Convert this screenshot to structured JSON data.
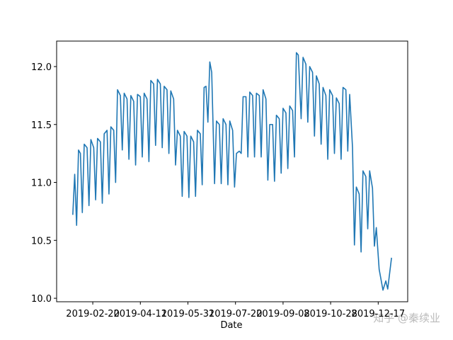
{
  "chart_data": {
    "type": "line",
    "x_label": "Date",
    "watermark": "知乎 @秦续业",
    "x": [
      "2019-01-30",
      "2019-02-01",
      "2019-02-03",
      "2019-02-05",
      "2019-02-07",
      "2019-02-09",
      "2019-02-11",
      "2019-02-14",
      "2019-02-16",
      "2019-02-18",
      "2019-02-21",
      "2019-02-23",
      "2019-02-25",
      "2019-02-28",
      "2019-03-02",
      "2019-03-04",
      "2019-03-07",
      "2019-03-09",
      "2019-03-11",
      "2019-03-14",
      "2019-03-16",
      "2019-03-18",
      "2019-03-21",
      "2019-03-23",
      "2019-03-25",
      "2019-03-28",
      "2019-03-30",
      "2019-04-01",
      "2019-04-04",
      "2019-04-06",
      "2019-04-08",
      "2019-04-11",
      "2019-04-13",
      "2019-04-15",
      "2019-04-18",
      "2019-04-20",
      "2019-04-22",
      "2019-04-25",
      "2019-04-27",
      "2019-04-29",
      "2019-05-02",
      "2019-05-04",
      "2019-05-06",
      "2019-05-09",
      "2019-05-11",
      "2019-05-13",
      "2019-05-16",
      "2019-05-18",
      "2019-05-20",
      "2019-05-23",
      "2019-05-25",
      "2019-05-27",
      "2019-05-30",
      "2019-06-01",
      "2019-06-03",
      "2019-06-06",
      "2019-06-08",
      "2019-06-10",
      "2019-06-13",
      "2019-06-15",
      "2019-06-17",
      "2019-06-19",
      "2019-06-21",
      "2019-06-23",
      "2019-06-25",
      "2019-06-28",
      "2019-06-30",
      "2019-07-03",
      "2019-07-05",
      "2019-07-07",
      "2019-07-10",
      "2019-07-12",
      "2019-07-14",
      "2019-07-17",
      "2019-07-19",
      "2019-07-21",
      "2019-07-24",
      "2019-07-26",
      "2019-07-28",
      "2019-07-31",
      "2019-08-02",
      "2019-08-04",
      "2019-08-07",
      "2019-08-09",
      "2019-08-11",
      "2019-08-14",
      "2019-08-16",
      "2019-08-18",
      "2019-08-21",
      "2019-08-23",
      "2019-08-25",
      "2019-08-28",
      "2019-08-30",
      "2019-09-01",
      "2019-09-04",
      "2019-09-06",
      "2019-09-08",
      "2019-09-11",
      "2019-09-13",
      "2019-09-15",
      "2019-09-18",
      "2019-09-20",
      "2019-09-22",
      "2019-09-24",
      "2019-09-27",
      "2019-09-29",
      "2019-10-02",
      "2019-10-04",
      "2019-10-06",
      "2019-10-09",
      "2019-10-11",
      "2019-10-13",
      "2019-10-16",
      "2019-10-18",
      "2019-10-20",
      "2019-10-23",
      "2019-10-25",
      "2019-10-27",
      "2019-10-30",
      "2019-11-01",
      "2019-11-03",
      "2019-11-06",
      "2019-11-08",
      "2019-11-10",
      "2019-11-13",
      "2019-11-15",
      "2019-11-17",
      "2019-11-20",
      "2019-11-22",
      "2019-11-24",
      "2019-11-27",
      "2019-11-29",
      "2019-12-01",
      "2019-12-04",
      "2019-12-06",
      "2019-12-08",
      "2019-12-11",
      "2019-12-13",
      "2019-12-15",
      "2019-12-18",
      "2019-12-22",
      "2019-12-25",
      "2019-12-27",
      "2019-12-31"
    ],
    "series": [
      {
        "color": "#1f77b4",
        "values": [
          10.72,
          11.07,
          10.63,
          11.28,
          11.25,
          10.74,
          11.33,
          11.3,
          10.8,
          11.37,
          11.3,
          10.85,
          11.38,
          11.35,
          10.82,
          11.42,
          11.45,
          10.9,
          11.48,
          11.45,
          11.0,
          11.8,
          11.75,
          11.28,
          11.77,
          11.72,
          11.2,
          11.75,
          11.7,
          11.15,
          11.76,
          11.74,
          11.22,
          11.77,
          11.72,
          11.18,
          11.88,
          11.85,
          11.32,
          11.89,
          11.85,
          11.3,
          11.83,
          11.8,
          11.25,
          11.79,
          11.72,
          11.15,
          11.45,
          11.4,
          10.88,
          11.44,
          11.4,
          10.87,
          11.4,
          11.35,
          10.88,
          11.45,
          11.42,
          10.98,
          11.82,
          11.83,
          11.52,
          12.04,
          11.95,
          10.99,
          11.53,
          11.5,
          10.99,
          11.55,
          11.5,
          10.98,
          11.53,
          11.45,
          10.96,
          11.25,
          11.27,
          11.25,
          11.74,
          11.74,
          11.22,
          11.78,
          11.75,
          11.22,
          11.77,
          11.75,
          11.22,
          11.8,
          11.72,
          11.02,
          11.5,
          11.5,
          11.01,
          11.58,
          11.55,
          11.08,
          11.64,
          11.6,
          11.12,
          11.66,
          11.62,
          11.22,
          12.12,
          12.1,
          11.55,
          12.08,
          12.02,
          11.52,
          12.0,
          11.95,
          11.4,
          11.92,
          11.85,
          11.33,
          11.82,
          11.75,
          11.2,
          11.8,
          11.75,
          11.25,
          11.73,
          11.68,
          11.2,
          11.82,
          11.8,
          11.27,
          11.76,
          11.3,
          10.46,
          10.96,
          10.9,
          10.4,
          11.1,
          11.05,
          10.6,
          11.1,
          10.95,
          10.45,
          10.61,
          10.25,
          10.07,
          10.15,
          10.08,
          10.35
        ]
      }
    ],
    "xlim": [
      "2019-01-13",
      "2020-01-17"
    ],
    "xticks": [
      "2019-02-20",
      "2019-04-11",
      "2019-05-31",
      "2019-07-20",
      "2019-09-08",
      "2019-10-28",
      "2019-12-17"
    ],
    "ylim": [
      9.97,
      12.22
    ],
    "yticks": [
      {
        "value": 10,
        "label": "10.0"
      },
      10.5,
      {
        "value": 11,
        "label": "11.0"
      },
      11.5,
      {
        "value": 12,
        "label": "12.0"
      }
    ]
  }
}
